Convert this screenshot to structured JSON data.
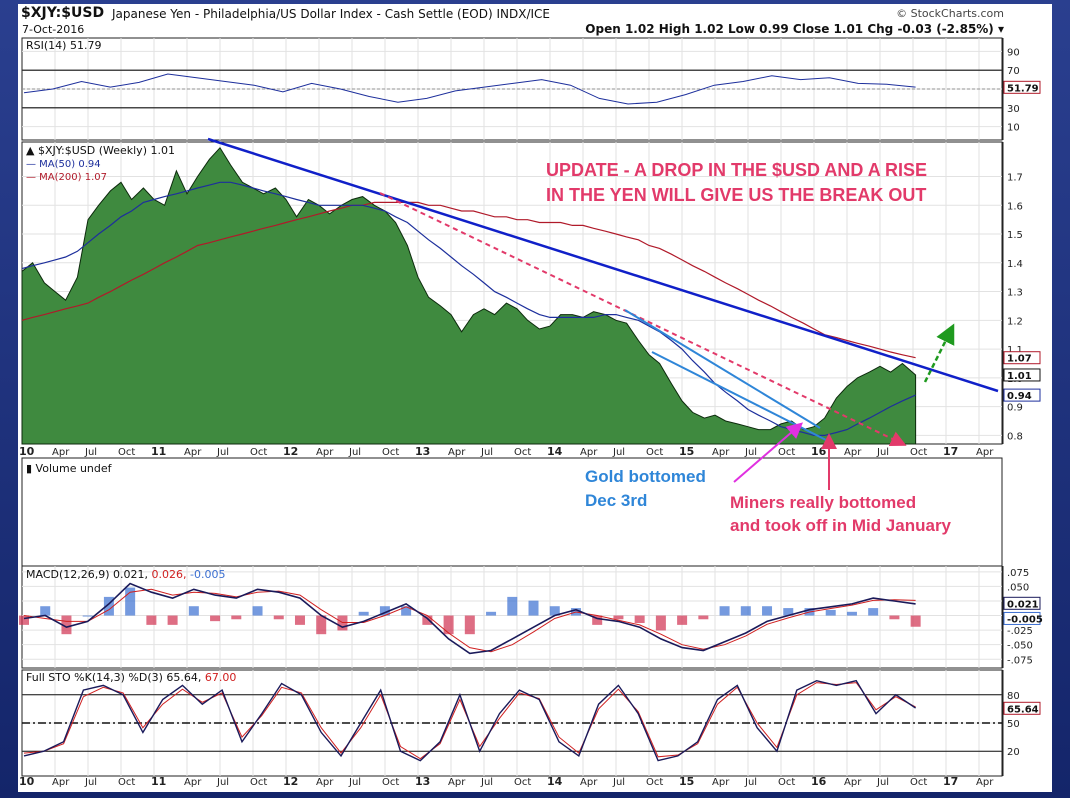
{
  "header": {
    "symbol": "$XJY:$USD",
    "description": "Japanese Yen - Philadelphia/US Dollar Index - Cash Settle (EOD)  INDX/ICE",
    "date": "7-Oct-2016",
    "watermark": "© StockCharts.com",
    "ohlc": "Open 1.02  High 1.02  Low 0.99  Close 1.01  Chg -0.03 (-2.85%) ▾"
  },
  "colors": {
    "price_fill": "#3f8a3f",
    "ma50": "#1d2f9c",
    "ma200": "#b01a2a",
    "trend": "#1020c8",
    "pink": "#e23a6a",
    "lightblue": "#2f86d8",
    "green_arrow": "#1f9a1f"
  },
  "x_axis": {
    "labels": [
      "10",
      "Apr",
      "Jul",
      "Oct",
      "11",
      "Apr",
      "Jul",
      "Oct",
      "12",
      "Apr",
      "Jul",
      "Oct",
      "13",
      "Apr",
      "Jul",
      "Oct",
      "14",
      "Apr",
      "Jul",
      "Oct",
      "15",
      "Apr",
      "Jul",
      "Oct",
      "16",
      "Apr",
      "Jul",
      "Oct",
      "17",
      "Apr"
    ]
  },
  "annotations": {
    "update_line1": "UPDATE -  A DROP IN THE $USD AND A RISE",
    "update_line2": "IN THE YEN WILL GIVE US THE BREAK OUT",
    "gold_line1": "Gold bottomed",
    "gold_line2": "Dec 3rd",
    "miners_line1": "Miners really bottomed",
    "miners_line2": "and took off in Mid January"
  },
  "chart_data": [
    {
      "type": "line",
      "panel": "rsi",
      "title": "RSI(14) 51.79",
      "ylim": [
        0,
        100
      ],
      "y_ticks": [
        90,
        70,
        50,
        30,
        10
      ],
      "last_value_label": "51.79",
      "series": [
        {
          "name": "RSI(14)",
          "values": [
            46,
            50,
            58,
            52,
            57,
            66,
            62,
            58,
            54,
            47,
            56,
            50,
            42,
            36,
            40,
            48,
            52,
            56,
            60,
            54,
            40,
            34,
            36,
            44,
            54,
            58,
            64,
            60,
            62,
            56,
            55,
            52
          ]
        }
      ]
    },
    {
      "type": "area",
      "panel": "price",
      "title": "$XJY:$USD (Weekly) 1.01",
      "ylim": [
        0.77,
        1.82
      ],
      "y_ticks": [
        1.7,
        1.6,
        1.5,
        1.4,
        1.3,
        1.2,
        1.1,
        1.0,
        0.9,
        0.8
      ],
      "last_value_labels": [
        "1.07",
        "1.01",
        "0.94"
      ],
      "x": [
        2010.0,
        2010.08,
        2010.17,
        2010.25,
        2010.33,
        2010.42,
        2010.5,
        2010.58,
        2010.67,
        2010.75,
        2010.83,
        2010.92,
        2011.0,
        2011.08,
        2011.17,
        2011.25,
        2011.33,
        2011.42,
        2011.5,
        2011.58,
        2011.67,
        2011.75,
        2011.83,
        2011.92,
        2012.0,
        2012.08,
        2012.17,
        2012.25,
        2012.33,
        2012.42,
        2012.5,
        2012.58,
        2012.67,
        2012.75,
        2012.83,
        2012.92,
        2013.0,
        2013.08,
        2013.17,
        2013.25,
        2013.33,
        2013.42,
        2013.5,
        2013.58,
        2013.67,
        2013.75,
        2013.83,
        2013.92,
        2014.0,
        2014.08,
        2014.17,
        2014.25,
        2014.33,
        2014.42,
        2014.5,
        2014.58,
        2014.67,
        2014.75,
        2014.83,
        2014.92,
        2015.0,
        2015.08,
        2015.17,
        2015.25,
        2015.33,
        2015.42,
        2015.5,
        2015.58,
        2015.67,
        2015.75,
        2015.83,
        2015.92,
        2016.0,
        2016.08,
        2016.17,
        2016.25,
        2016.33,
        2016.42,
        2016.5,
        2016.58,
        2016.67,
        2016.77
      ],
      "series": [
        {
          "name": "$XJY:$USD",
          "values": [
            1.37,
            1.4,
            1.33,
            1.3,
            1.27,
            1.35,
            1.55,
            1.6,
            1.65,
            1.68,
            1.62,
            1.66,
            1.62,
            1.6,
            1.72,
            1.64,
            1.7,
            1.76,
            1.8,
            1.74,
            1.68,
            1.66,
            1.64,
            1.66,
            1.62,
            1.56,
            1.62,
            1.6,
            1.57,
            1.6,
            1.62,
            1.63,
            1.6,
            1.58,
            1.54,
            1.46,
            1.35,
            1.28,
            1.25,
            1.22,
            1.16,
            1.22,
            1.24,
            1.22,
            1.26,
            1.24,
            1.2,
            1.17,
            1.18,
            1.22,
            1.22,
            1.21,
            1.23,
            1.22,
            1.2,
            1.19,
            1.13,
            1.08,
            1.05,
            0.98,
            0.92,
            0.88,
            0.86,
            0.87,
            0.85,
            0.84,
            0.83,
            0.82,
            0.82,
            0.84,
            0.85,
            0.82,
            0.83,
            0.86,
            0.93,
            0.97,
            1.0,
            1.02,
            1.04,
            1.02,
            1.05,
            1.01
          ]
        },
        {
          "name": "MA(50) 0.94",
          "values": [
            1.38,
            1.39,
            1.4,
            1.41,
            1.42,
            1.44,
            1.47,
            1.5,
            1.53,
            1.56,
            1.58,
            1.61,
            1.62,
            1.63,
            1.64,
            1.65,
            1.66,
            1.67,
            1.68,
            1.68,
            1.67,
            1.66,
            1.65,
            1.64,
            1.63,
            1.62,
            1.61,
            1.6,
            1.6,
            1.6,
            1.6,
            1.6,
            1.59,
            1.58,
            1.56,
            1.54,
            1.51,
            1.48,
            1.45,
            1.42,
            1.39,
            1.36,
            1.33,
            1.3,
            1.28,
            1.26,
            1.24,
            1.22,
            1.21,
            1.21,
            1.21,
            1.21,
            1.21,
            1.22,
            1.22,
            1.21,
            1.2,
            1.18,
            1.16,
            1.13,
            1.1,
            1.06,
            1.02,
            0.98,
            0.95,
            0.92,
            0.89,
            0.87,
            0.85,
            0.83,
            0.82,
            0.81,
            0.8,
            0.8,
            0.81,
            0.82,
            0.84,
            0.86,
            0.88,
            0.9,
            0.92,
            0.94
          ]
        },
        {
          "name": "MA(200) 1.07",
          "values": [
            1.2,
            1.21,
            1.22,
            1.23,
            1.24,
            1.25,
            1.26,
            1.28,
            1.3,
            1.32,
            1.34,
            1.36,
            1.38,
            1.4,
            1.42,
            1.44,
            1.46,
            1.47,
            1.48,
            1.49,
            1.5,
            1.51,
            1.52,
            1.53,
            1.54,
            1.55,
            1.56,
            1.57,
            1.58,
            1.59,
            1.6,
            1.6,
            1.61,
            1.61,
            1.61,
            1.61,
            1.61,
            1.6,
            1.6,
            1.59,
            1.58,
            1.58,
            1.57,
            1.56,
            1.56,
            1.55,
            1.55,
            1.54,
            1.54,
            1.54,
            1.53,
            1.53,
            1.52,
            1.51,
            1.5,
            1.49,
            1.48,
            1.46,
            1.45,
            1.43,
            1.41,
            1.39,
            1.37,
            1.35,
            1.33,
            1.31,
            1.29,
            1.27,
            1.25,
            1.23,
            1.21,
            1.19,
            1.17,
            1.15,
            1.14,
            1.13,
            1.12,
            1.11,
            1.1,
            1.09,
            1.08,
            1.07
          ]
        }
      ]
    },
    {
      "type": "bar",
      "panel": "volume",
      "title": "Volume undef",
      "values": []
    },
    {
      "type": "line",
      "panel": "macd",
      "title": "MACD(12,26,9) 0.021, 0.026, -0.005",
      "title_parts": [
        "MACD(12,26,9)",
        "0.021,",
        "0.026,",
        "-0.005"
      ],
      "ylim": [
        -0.09,
        0.085
      ],
      "y_ticks": [
        0.075,
        0.05,
        0.025,
        0.0,
        -0.025,
        -0.05,
        -0.075
      ],
      "last_value_labels": [
        "0.021",
        "-0.005"
      ],
      "series": [
        {
          "name": "MACD",
          "values": [
            -0.005,
            0.0,
            -0.02,
            -0.01,
            0.02,
            0.055,
            0.04,
            0.03,
            0.045,
            0.035,
            0.03,
            0.045,
            0.04,
            0.03,
            0.0,
            -0.02,
            -0.01,
            0.005,
            0.02,
            -0.005,
            -0.04,
            -0.065,
            -0.06,
            -0.04,
            -0.02,
            0.0,
            0.01,
            -0.005,
            -0.01,
            -0.02,
            -0.04,
            -0.055,
            -0.06,
            -0.045,
            -0.03,
            -0.01,
            0.0,
            0.01,
            0.015,
            0.02,
            0.03,
            0.025,
            0.02
          ]
        },
        {
          "name": "Signal",
          "values": [
            0.0,
            -0.005,
            -0.01,
            -0.01,
            0.01,
            0.04,
            0.045,
            0.035,
            0.04,
            0.038,
            0.032,
            0.04,
            0.042,
            0.035,
            0.01,
            -0.012,
            -0.012,
            0.0,
            0.015,
            0.0,
            -0.03,
            -0.055,
            -0.062,
            -0.05,
            -0.028,
            -0.005,
            0.006,
            0.0,
            -0.008,
            -0.016,
            -0.032,
            -0.05,
            -0.058,
            -0.05,
            -0.035,
            -0.015,
            -0.004,
            0.006,
            0.012,
            0.018,
            0.026,
            0.027,
            0.026
          ]
        }
      ]
    },
    {
      "type": "line",
      "panel": "stochastic",
      "title": "Full STO %K(14,3) %D(3) 65.64, 67.00",
      "title_parts": [
        "Full STO %K(14,3) %D(3)",
        "65.64,",
        "67.00"
      ],
      "ylim": [
        0,
        100
      ],
      "y_ticks": [
        80,
        50,
        20
      ],
      "last_value_label": "65.64",
      "series": [
        {
          "name": "%K",
          "values": [
            15,
            20,
            30,
            85,
            90,
            80,
            40,
            75,
            90,
            70,
            85,
            30,
            60,
            92,
            80,
            40,
            15,
            50,
            85,
            20,
            10,
            30,
            80,
            20,
            60,
            85,
            75,
            30,
            15,
            70,
            90,
            60,
            10,
            15,
            30,
            75,
            90,
            45,
            20,
            85,
            95,
            90,
            95,
            60,
            80,
            66
          ]
        },
        {
          "name": "%D",
          "values": [
            18,
            20,
            28,
            78,
            88,
            82,
            45,
            70,
            86,
            72,
            82,
            35,
            58,
            88,
            82,
            45,
            18,
            45,
            80,
            25,
            12,
            28,
            75,
            25,
            55,
            82,
            76,
            35,
            18,
            65,
            86,
            62,
            14,
            16,
            28,
            70,
            88,
            50,
            24,
            80,
            93,
            91,
            93,
            64,
            78,
            67
          ]
        }
      ]
    }
  ]
}
